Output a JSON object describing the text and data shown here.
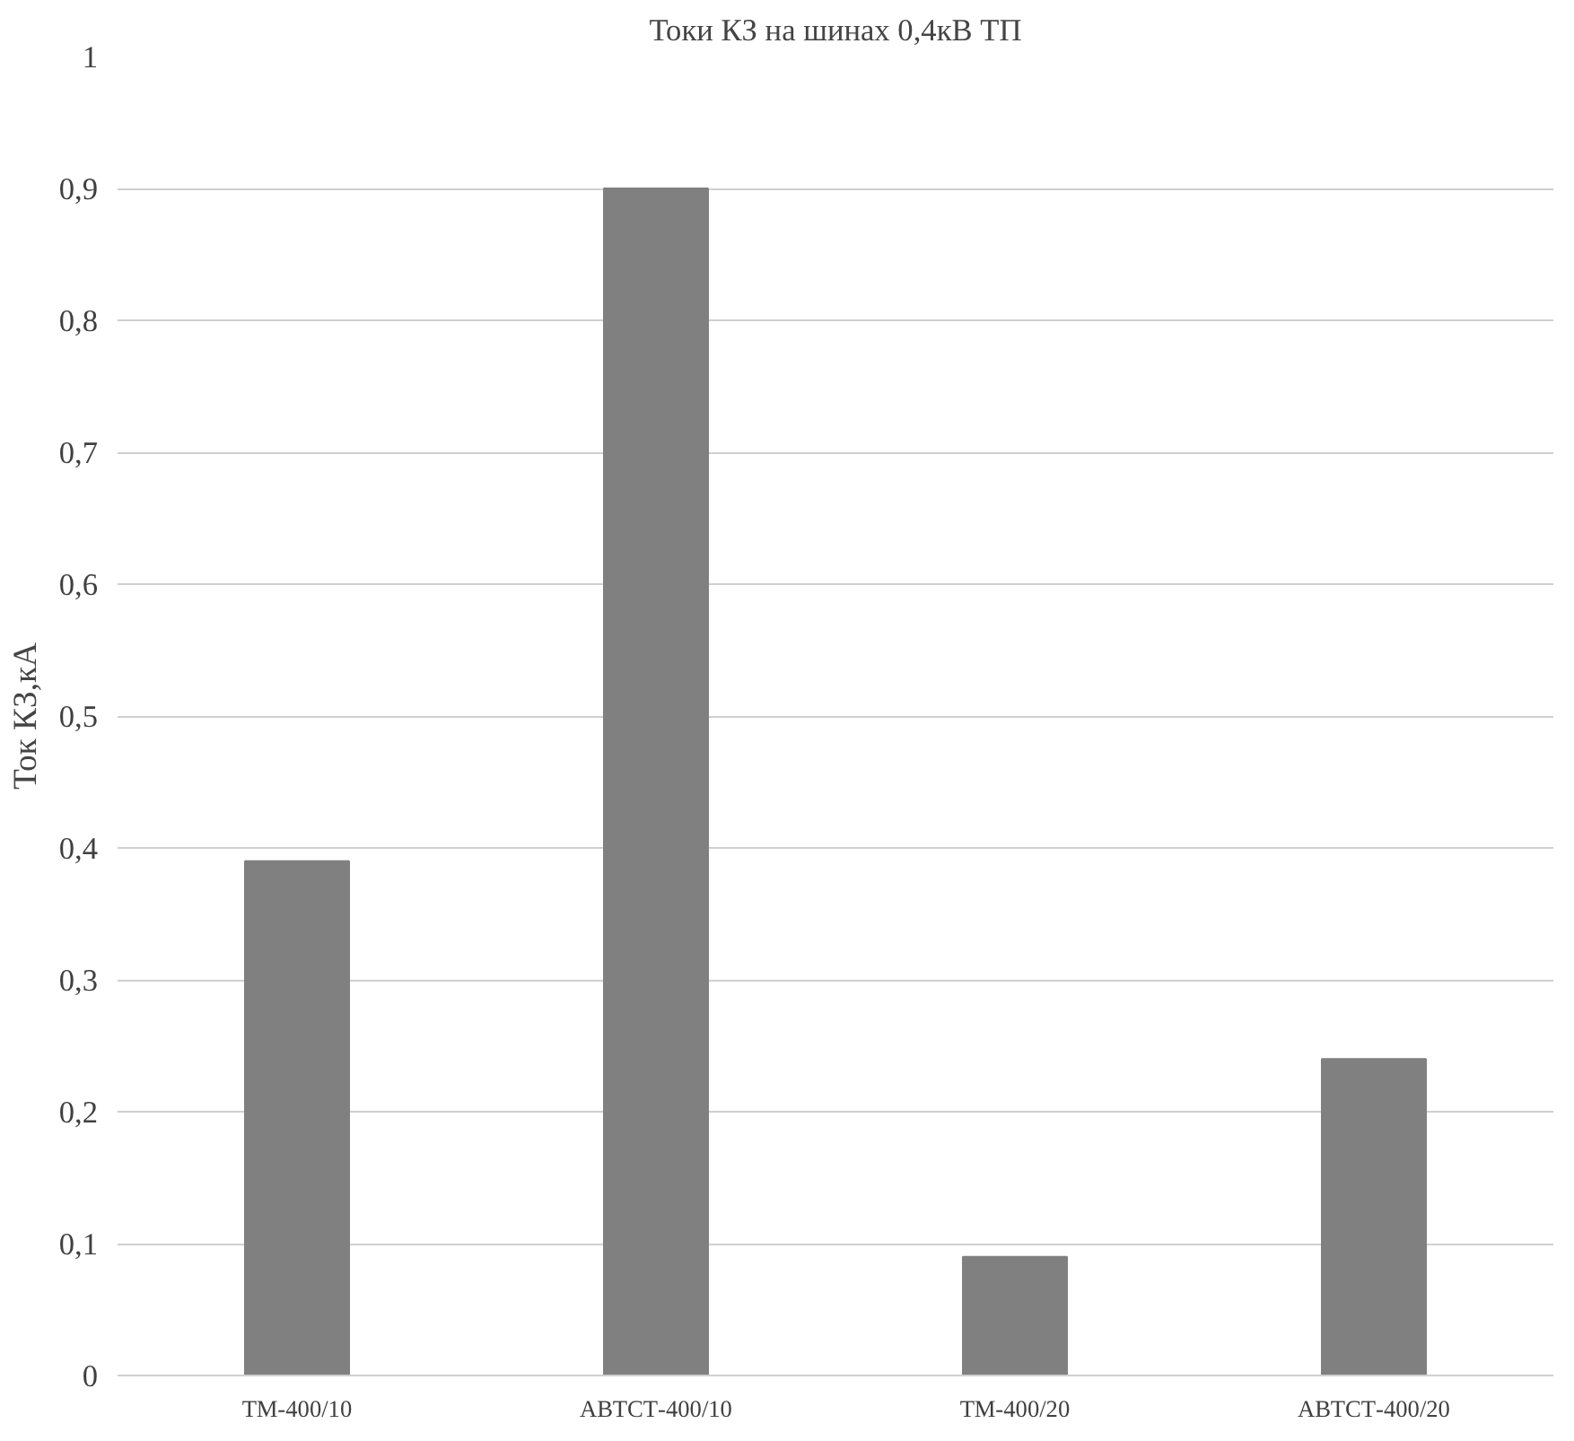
{
  "chart_data": {
    "type": "bar",
    "title": "Токи КЗ на шинах 0,4кВ ТП",
    "ylabel": "Ток КЗ,кА",
    "categories": [
      "ТМ-400/10",
      "АВТСТ-400/10",
      "ТМ-400/20",
      "АВТСТ-400/20"
    ],
    "values": [
      0.39,
      0.9,
      0.09,
      0.24
    ],
    "color": "#808080",
    "ylim": [
      0,
      1
    ],
    "yticks": [
      {
        "value": 0,
        "label": "0"
      },
      {
        "value": 0.1,
        "label": "0,1"
      },
      {
        "value": 0.2,
        "label": "0,2"
      },
      {
        "value": 0.3,
        "label": "0,3"
      },
      {
        "value": 0.4,
        "label": "0,4"
      },
      {
        "value": 0.5,
        "label": "0,5"
      },
      {
        "value": 0.6,
        "label": "0,6"
      },
      {
        "value": 0.7,
        "label": "0,7"
      },
      {
        "value": 0.8,
        "label": "0,8"
      },
      {
        "value": 0.9,
        "label": "0,9"
      },
      {
        "value": 1,
        "label": "1"
      }
    ],
    "grid": "y"
  }
}
